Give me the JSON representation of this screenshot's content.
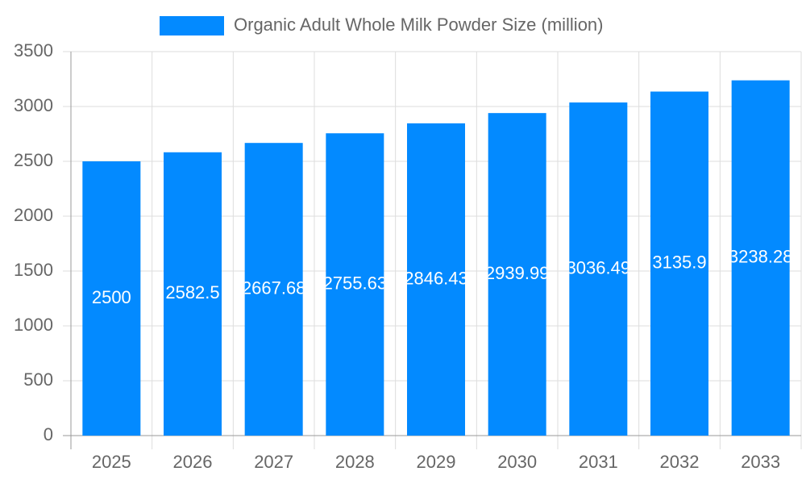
{
  "chart_data": {
    "type": "bar",
    "categories": [
      "2025",
      "2026",
      "2027",
      "2028",
      "2029",
      "2030",
      "2031",
      "2032",
      "2033"
    ],
    "series": [
      {
        "name": "Organic Adult Whole Milk Powder Size (million)",
        "color": "#038aff",
        "values": [
          2500,
          2582.5,
          2667.68,
          2755.63,
          2846.43,
          2939.99,
          3036.49,
          3135.9,
          3238.28
        ]
      }
    ],
    "ylim": [
      0,
      3500
    ],
    "yticks": [
      0,
      500,
      1000,
      1500,
      2000,
      2500,
      3000,
      3500
    ],
    "grid": true
  }
}
